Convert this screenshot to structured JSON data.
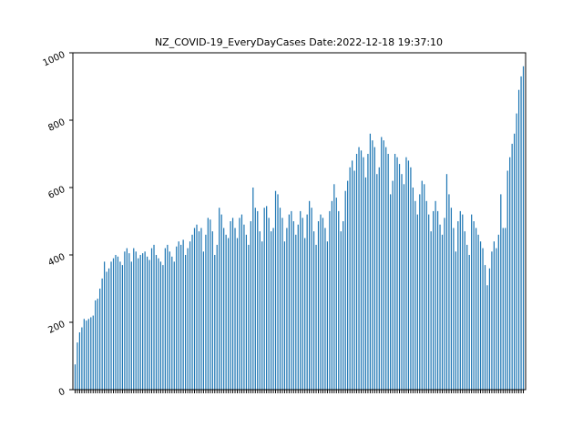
{
  "chart_data": {
    "type": "bar",
    "title": "NZ_COVID-19_EveryDayCases  Date:2022-12-18 19:37:10",
    "xlabel": "",
    "ylabel": "",
    "ylim": [
      0,
      1000
    ],
    "yticks": [
      "0",
      "200",
      "400",
      "600",
      "800",
      "1000"
    ],
    "grid": false,
    "color": "#1f77b4",
    "category_count": 200,
    "values": [
      75,
      140,
      170,
      185,
      210,
      205,
      210,
      215,
      220,
      265,
      270,
      300,
      330,
      380,
      350,
      360,
      380,
      390,
      400,
      395,
      380,
      370,
      410,
      420,
      405,
      380,
      420,
      410,
      390,
      400,
      405,
      410,
      395,
      385,
      420,
      430,
      400,
      390,
      380,
      370,
      420,
      430,
      410,
      395,
      380,
      425,
      440,
      430,
      445,
      400,
      420,
      440,
      460,
      480,
      490,
      470,
      480,
      410,
      460,
      510,
      505,
      470,
      400,
      430,
      540,
      520,
      480,
      460,
      450,
      500,
      510,
      480,
      450,
      510,
      520,
      490,
      460,
      430,
      500,
      600,
      540,
      530,
      470,
      440,
      540,
      545,
      510,
      470,
      480,
      590,
      580,
      540,
      510,
      440,
      480,
      520,
      530,
      500,
      460,
      490,
      530,
      510,
      450,
      520,
      560,
      540,
      470,
      430,
      500,
      520,
      510,
      480,
      440,
      530,
      560,
      610,
      570,
      530,
      470,
      500,
      590,
      620,
      660,
      680,
      650,
      700,
      720,
      710,
      690,
      630,
      700,
      760,
      740,
      720,
      640,
      660,
      750,
      740,
      720,
      700,
      580,
      620,
      700,
      690,
      670,
      640,
      610,
      690,
      680,
      660,
      600,
      560,
      520,
      580,
      620,
      610,
      560,
      520,
      470,
      530,
      560,
      530,
      490,
      460,
      510,
      640,
      580,
      540,
      480,
      410,
      500,
      530,
      520,
      470,
      430,
      400,
      520,
      500,
      480,
      460,
      440,
      420,
      370,
      310,
      360,
      410,
      440,
      420,
      460,
      580,
      480,
      480,
      650,
      690,
      730,
      760,
      820,
      890,
      930,
      960
    ]
  }
}
